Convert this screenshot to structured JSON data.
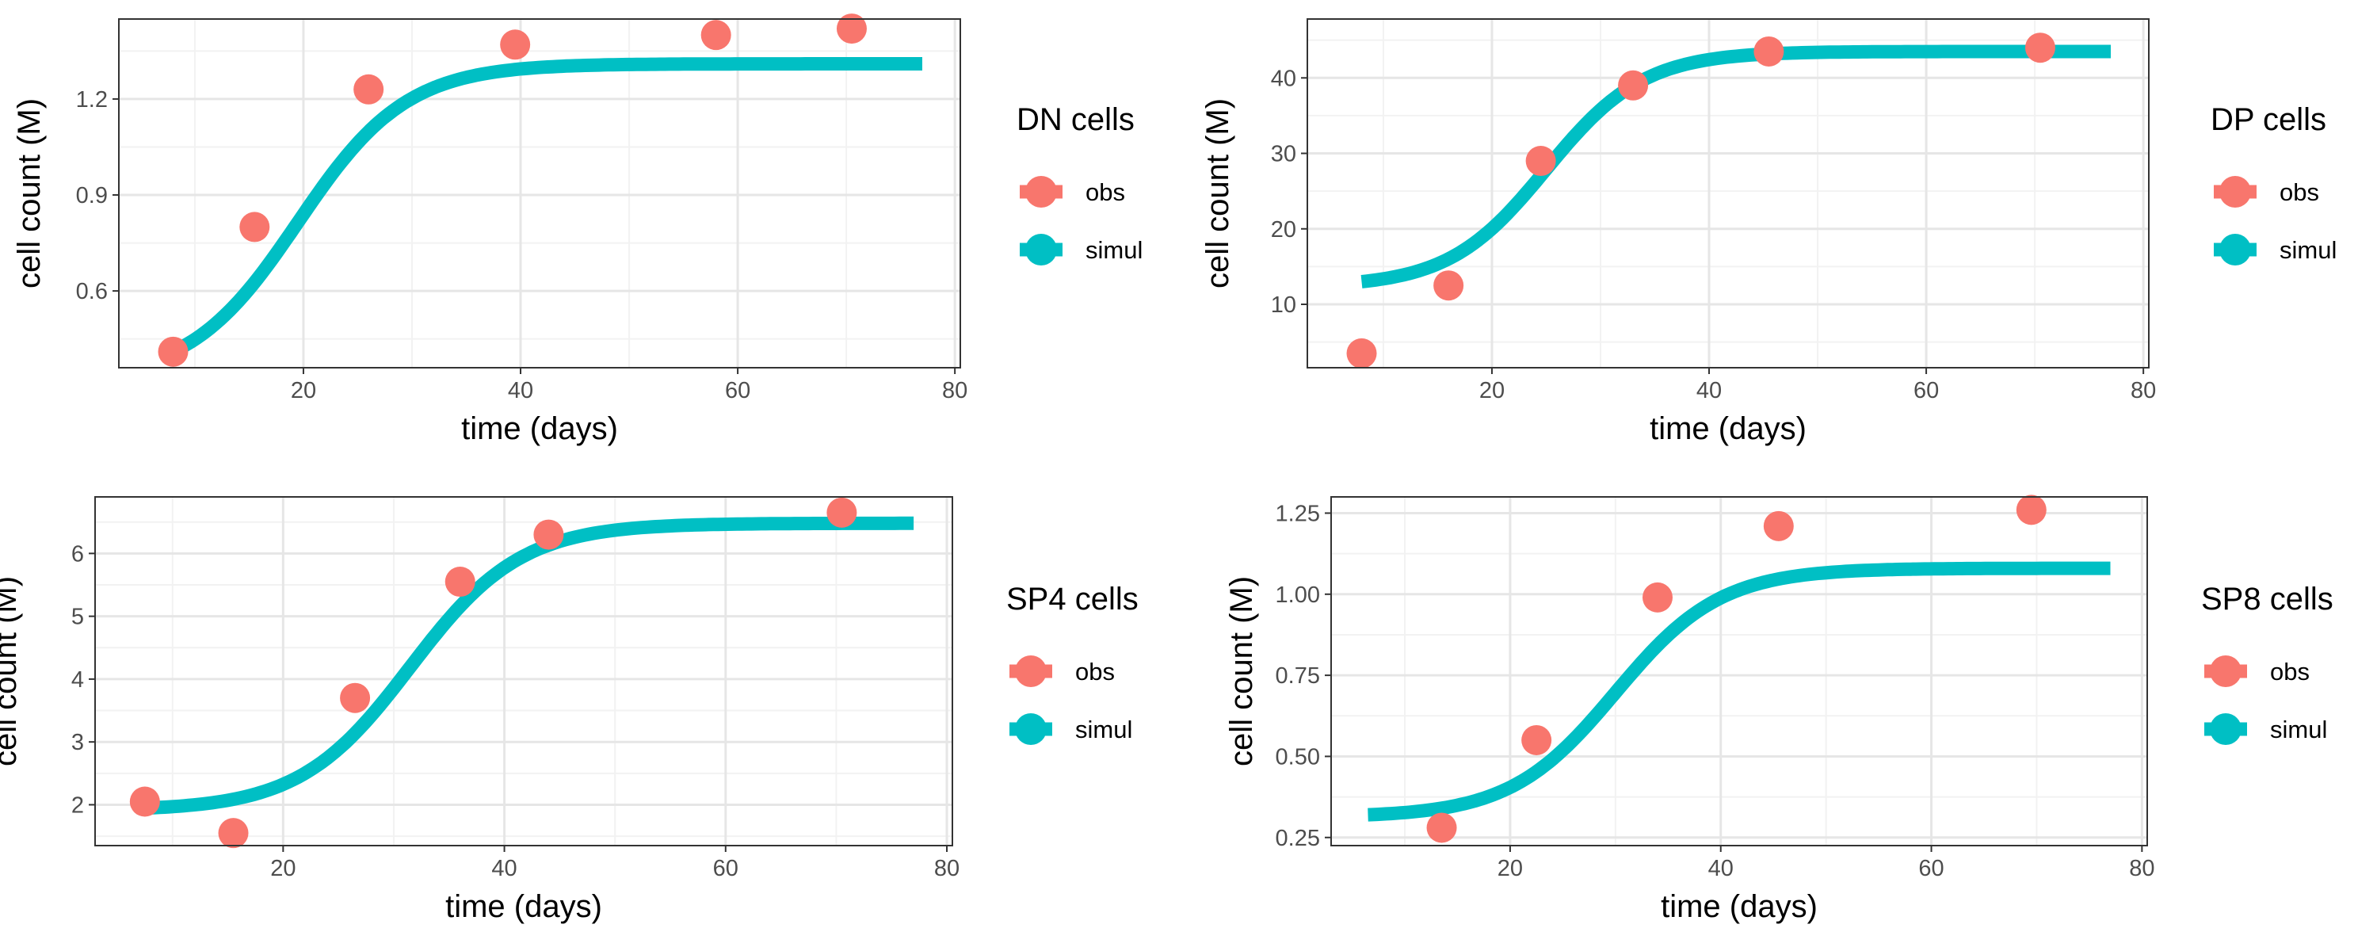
{
  "chart_data": [
    {
      "type": "scatter+line",
      "legend_title": "DN cells",
      "xlabel": "time (days)",
      "ylabel": "cell count (M)",
      "xlim": [
        3,
        80.5
      ],
      "ylim": [
        0.36,
        1.45
      ],
      "xticks": [
        20,
        40,
        60,
        80
      ],
      "yticks": [
        0.6,
        0.9,
        1.2
      ],
      "ytick_labels": [
        "0.6",
        "0.9",
        "1.2"
      ],
      "grid": true,
      "legend_position": "right",
      "series": [
        {
          "name": "obs",
          "type": "scatter",
          "color": "#F8766D",
          "points": [
            [
              8,
              0.41
            ],
            [
              15.5,
              0.8
            ],
            [
              26,
              1.23
            ],
            [
              39.5,
              1.37
            ],
            [
              58,
              1.4
            ],
            [
              70.5,
              1.42
            ]
          ]
        },
        {
          "name": "simul",
          "type": "line",
          "color": "#00BFC4",
          "curve": {
            "form": "logistic",
            "x_start": 8,
            "x_end": 77,
            "y0": 0.41,
            "y_max": 1.31,
            "midpoint": 19.5,
            "scale": 5
          }
        }
      ]
    },
    {
      "type": "scatter+line",
      "legend_title": "DP cells",
      "xlabel": "time (days)",
      "ylabel": "cell count (M)",
      "xlim": [
        3,
        80.5
      ],
      "ylim": [
        1.6,
        47.8
      ],
      "xticks": [
        20,
        40,
        60,
        80
      ],
      "yticks": [
        10,
        20,
        30,
        40
      ],
      "ytick_labels": [
        "10",
        "20",
        "30",
        "40"
      ],
      "grid": true,
      "legend_position": "right",
      "series": [
        {
          "name": "obs",
          "type": "scatter",
          "color": "#F8766D",
          "points": [
            [
              8,
              3.5
            ],
            [
              16,
              12.5
            ],
            [
              24.5,
              29
            ],
            [
              33,
              39
            ],
            [
              45.5,
              43.5
            ],
            [
              70.5,
              44
            ]
          ]
        },
        {
          "name": "simul",
          "type": "line",
          "color": "#00BFC4",
          "curve": {
            "form": "logistic",
            "x_start": 8,
            "x_end": 77,
            "y0": 13,
            "y_max": 43.5,
            "midpoint": 25,
            "scale": 4.5
          }
        }
      ]
    },
    {
      "type": "scatter+line",
      "legend_title": "SP4 cells",
      "xlabel": "time (days)",
      "ylabel": "cell count (M)",
      "xlim": [
        3,
        80.5
      ],
      "ylim": [
        1.35,
        6.9
      ],
      "xticks": [
        20,
        40,
        60,
        80
      ],
      "yticks": [
        2,
        3,
        4,
        5,
        6
      ],
      "ytick_labels": [
        "2",
        "3",
        "4",
        "5",
        "6"
      ],
      "grid": true,
      "legend_position": "right",
      "series": [
        {
          "name": "obs",
          "type": "scatter",
          "color": "#F8766D",
          "points": [
            [
              7.5,
              2.05
            ],
            [
              15.5,
              1.55
            ],
            [
              26.5,
              3.7
            ],
            [
              36,
              5.55
            ],
            [
              44,
              6.3
            ],
            [
              70.5,
              6.65
            ]
          ]
        },
        {
          "name": "simul",
          "type": "line",
          "color": "#00BFC4",
          "curve": {
            "form": "logistic",
            "x_start": 8,
            "x_end": 77,
            "y0": 1.95,
            "y_max": 6.48,
            "midpoint": 31.5,
            "scale": 5
          }
        }
      ]
    },
    {
      "type": "scatter+line",
      "legend_title": "SP8 cells",
      "xlabel": "time (days)",
      "ylabel": "cell count (M)",
      "xlim": [
        3,
        80.5
      ],
      "ylim": [
        0.225,
        1.3
      ],
      "xticks": [
        20,
        40,
        60,
        80
      ],
      "yticks": [
        0.25,
        0.5,
        0.75,
        1.0,
        1.25
      ],
      "ytick_labels": [
        "0.25",
        "0.50",
        "0.75",
        "1.00",
        "1.25"
      ],
      "grid": true,
      "legend_position": "right",
      "series": [
        {
          "name": "obs",
          "type": "scatter",
          "color": "#F8766D",
          "points": [
            [
              13.5,
              0.28
            ],
            [
              22.5,
              0.55
            ],
            [
              34,
              0.99
            ],
            [
              45.5,
              1.21
            ],
            [
              69.5,
              1.26
            ]
          ]
        },
        {
          "name": "simul",
          "type": "line",
          "color": "#00BFC4",
          "curve": {
            "form": "logistic",
            "x_start": 6.5,
            "x_end": 77,
            "y0": 0.32,
            "y_max": 1.08,
            "midpoint": 30,
            "scale": 5
          }
        }
      ]
    }
  ]
}
